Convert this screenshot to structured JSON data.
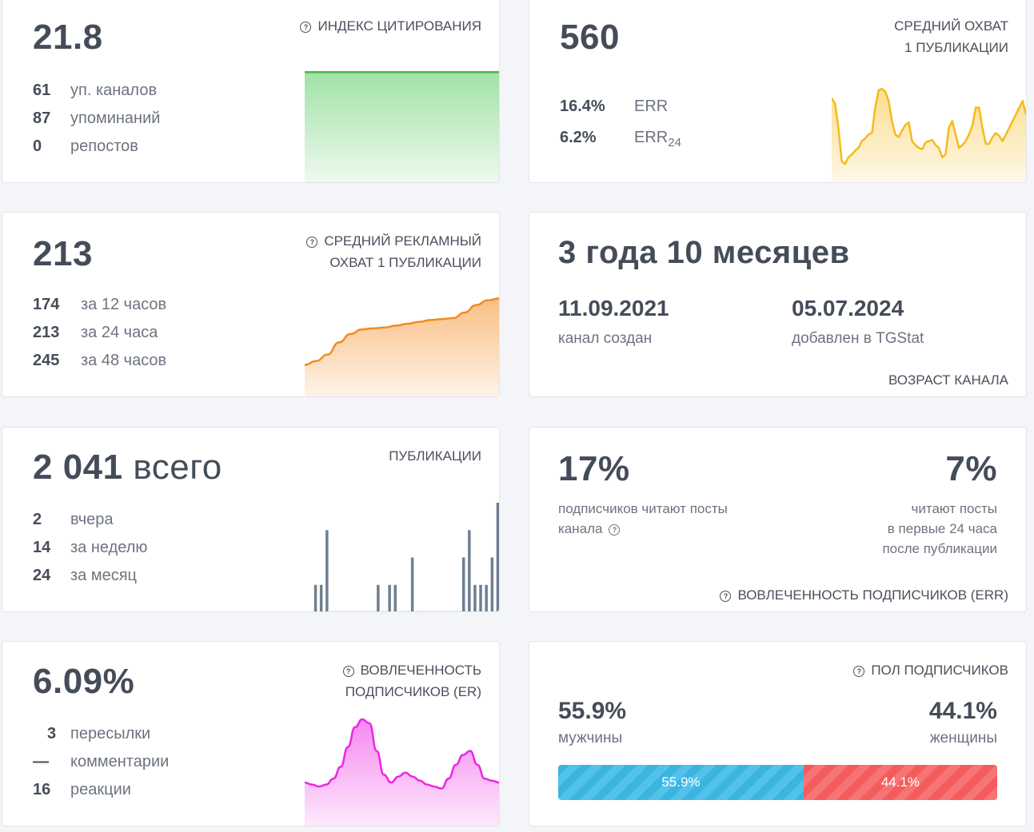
{
  "citation": {
    "value": "21.8",
    "title": "ИНДЕКС ЦИТИРОВАНИЯ",
    "stats": [
      {
        "n": "61",
        "l": "уп. каналов"
      },
      {
        "n": "87",
        "l": "упоминаний"
      },
      {
        "n": "0",
        "l": "репостов"
      }
    ],
    "color": "#44b94f"
  },
  "reach": {
    "value": "560",
    "title_line1": "СРЕДНИЙ ОХВАТ",
    "title_line2": "1 ПУБЛИКАЦИИ",
    "err_value": "16.4%",
    "err_label": "ERR",
    "err24_value": "6.2%",
    "err24_label": "ERR",
    "err24_sub": "24",
    "color": "#f5bb1d",
    "chart_values": [
      62,
      58,
      40,
      15,
      13,
      18,
      20,
      23,
      25,
      30,
      32,
      35,
      36,
      55,
      68,
      69,
      67,
      60,
      45,
      35,
      33,
      38,
      42,
      44,
      30,
      27,
      25,
      24,
      29,
      30,
      31,
      27,
      25,
      18,
      20,
      40,
      45,
      35,
      25,
      27,
      30,
      35,
      42,
      55,
      55,
      40,
      28,
      28,
      33,
      36,
      34,
      30,
      35,
      40,
      45,
      50,
      55,
      60,
      50
    ]
  },
  "ad_reach": {
    "value": "213",
    "title_line1": "СРЕДНИЙ РЕКЛАМНЫЙ",
    "title_line2": "ОХВАТ 1 ПУБЛИКАЦИИ",
    "stats": [
      {
        "n": "174",
        "l": "за 12 часов"
      },
      {
        "n": "213",
        "l": "за 24 часа"
      },
      {
        "n": "245",
        "l": "за 48 часов"
      }
    ],
    "color": "#f48a1e",
    "chart_values": [
      174,
      178,
      185,
      198,
      207,
      212,
      213,
      214,
      216,
      218,
      220,
      222,
      223,
      224,
      230,
      238,
      243,
      245
    ]
  },
  "age": {
    "value": "3 года 10 месяцев",
    "created_date": "11.09.2021",
    "created_label": "канал создан",
    "added_date": "05.07.2024",
    "added_label": "добавлен в TGStat",
    "title": "ВОЗРАСТ КАНАЛА"
  },
  "posts": {
    "value_num": "2 041",
    "value_suffix": "всего",
    "title": "ПУБЛИКАЦИИ",
    "stats": [
      {
        "n": "2",
        "l": "вчера"
      },
      {
        "n": "14",
        "l": "за неделю"
      },
      {
        "n": "24",
        "l": "за месяц"
      }
    ],
    "color": "#6f7f91",
    "chart_values": [
      1,
      1,
      3,
      0,
      0,
      0,
      0,
      0,
      0,
      0,
      0,
      1,
      0,
      1,
      1,
      0,
      0,
      2,
      0,
      0,
      0,
      0,
      0,
      0,
      0,
      0,
      2,
      3,
      1,
      1,
      1,
      2,
      4
    ]
  },
  "err": {
    "left_value": "17%",
    "left_label_line1": "подписчиков читают посты",
    "left_label_line2": "канала",
    "right_value": "7%",
    "right_label_line1": "читают посты",
    "right_label_line2": "в первые 24 часа",
    "right_label_line3": "после публикации",
    "title": "ВОВЛЕЧЕННОСТЬ ПОДПИСЧИКОВ (ERR)"
  },
  "er": {
    "value": "6.09%",
    "title_line1": "ВОВЛЕЧЕННОСТЬ",
    "title_line2": "ПОДПИСЧИКОВ (ER)",
    "stats": [
      {
        "n": "3",
        "l": "пересылки"
      },
      {
        "n": "—",
        "l": "комментарии"
      },
      {
        "n": "16",
        "l": "реакции"
      }
    ],
    "color": "#ee26e4",
    "chart_values": [
      6,
      5,
      4,
      5,
      8,
      14,
      24,
      34,
      38,
      36,
      22,
      10,
      6,
      9,
      11,
      9,
      7,
      5,
      4,
      3,
      8,
      15,
      20,
      22,
      15,
      8,
      7,
      6
    ]
  },
  "gender": {
    "title": "ПОЛ ПОДПИСЧИКОВ",
    "male_value": "55.9%",
    "male_label": "мужчины",
    "female_value": "44.1%",
    "female_label": "женщины",
    "male_share": 55.9,
    "female_share": 44.1,
    "male_bar_text": "55.9%",
    "female_bar_text": "44.1%"
  }
}
